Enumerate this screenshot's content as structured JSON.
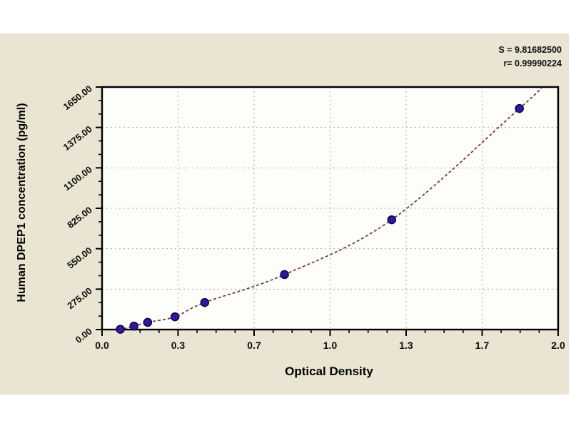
{
  "chart_data": {
    "type": "scatter",
    "title": "",
    "xlabel": "Optical Density",
    "ylabel": "Human DPEP1 concentration (pg/ml)",
    "xlim": [
      0.0,
      2.0
    ],
    "ylim": [
      0,
      1650
    ],
    "x_tick_values": [
      0,
      0.3333,
      0.6667,
      1.0,
      1.3333,
      1.6667,
      2.0
    ],
    "x_tick_labels": [
      "0.0",
      "0.3",
      "0.7",
      "1.0",
      "1.3",
      "1.7",
      "2.0"
    ],
    "y_tick_values": [
      0,
      275,
      550,
      825,
      1100,
      1375,
      1650
    ],
    "y_tick_labels": [
      "0.00",
      "275.00",
      "550.00",
      "825.00",
      "1100.00",
      "1375.00",
      "1650.00"
    ],
    "x_minor_per_major": 4,
    "y_minor_per_major": 3,
    "grid": "dashed-major-both-axes",
    "legend": "none",
    "points": [
      {
        "od": 0.08,
        "concentration": 2
      },
      {
        "od": 0.14,
        "concentration": 24
      },
      {
        "od": 0.2,
        "concentration": 49
      },
      {
        "od": 0.32,
        "concentration": 87
      },
      {
        "od": 0.45,
        "concentration": 184
      },
      {
        "od": 0.8,
        "concentration": 374
      },
      {
        "od": 1.27,
        "concentration": 747
      },
      {
        "od": 1.83,
        "concentration": 1504
      }
    ],
    "curve": {
      "style": "dashed",
      "od_start": 0.03,
      "conc_start": 0,
      "od_end": 1.93,
      "conc_end": 1650
    },
    "annotation": {
      "s_line": "S = 9.81682500",
      "r_line": "r= 0.99990224"
    },
    "colors": {
      "panel_background": "#e9e5d2",
      "plot_background": "#fdfdfa",
      "frame": "#000000",
      "grid": "#a6a6a2",
      "curve": "#72303d",
      "marker_fill": "#2d17a3",
      "marker_outline": "#12063f",
      "text": "#0d0d0d"
    }
  }
}
